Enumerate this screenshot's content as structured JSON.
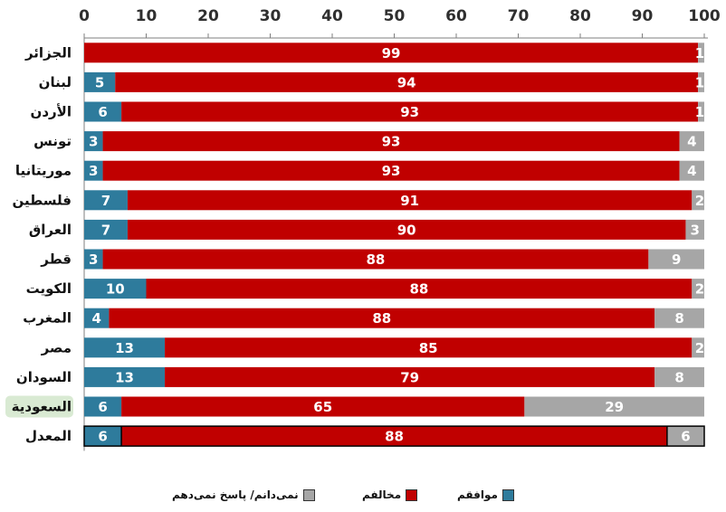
{
  "chart_data": {
    "type": "bar",
    "orientation": "horizontal",
    "stacked": true,
    "categories": [
      "الجزائر",
      "لبنان",
      "الأردن",
      "تونس",
      "موريتانيا",
      "فلسطين",
      "العراق",
      "قطر",
      "الكويت",
      "المغرب",
      "مصر",
      "السودان",
      "السعودية",
      "المعدل"
    ],
    "series": [
      {
        "name": "موافقم",
        "color": "#2e7b9c",
        "values": [
          0,
          5,
          6,
          3,
          3,
          7,
          7,
          3,
          10,
          4,
          13,
          13,
          6,
          6
        ]
      },
      {
        "name": "مخالفم",
        "color": "#c00000",
        "values": [
          99,
          94,
          93,
          93,
          93,
          91,
          90,
          88,
          88,
          88,
          85,
          79,
          65,
          88
        ]
      },
      {
        "name": "نمی‌دانم/ پاسخ نمی‌دهم",
        "color": "#a6a6a6",
        "values": [
          1,
          1,
          1,
          4,
          4,
          2,
          3,
          9,
          2,
          8,
          2,
          8,
          29,
          6
        ]
      }
    ],
    "labels": [
      [
        "",
        "99",
        "1"
      ],
      [
        "5",
        "94",
        "1"
      ],
      [
        "6",
        "93",
        "1"
      ],
      [
        "3",
        "93",
        "4"
      ],
      [
        "3",
        "93",
        "4"
      ],
      [
        "7",
        "91",
        "2"
      ],
      [
        "7",
        "90",
        "3"
      ],
      [
        "3",
        "88",
        "9"
      ],
      [
        "10",
        "88",
        "2"
      ],
      [
        "4",
        "88",
        "8"
      ],
      [
        "13",
        "85",
        "2"
      ],
      [
        "13",
        "79",
        "8"
      ],
      [
        "6",
        "65",
        "29"
      ],
      [
        "6",
        "88",
        "6"
      ]
    ],
    "xticks": [
      "0",
      "10",
      "20",
      "30",
      "40",
      "50",
      "60",
      "70",
      "80",
      "90",
      "100"
    ],
    "xlim": [
      0,
      100
    ],
    "highlight_category": "السعودية",
    "highlight_color": "#d9ead3",
    "outlined_category": "المعدل",
    "legend_position": "bottom",
    "title": "",
    "xlabel": "",
    "ylabel": ""
  },
  "legend": [
    {
      "label": "نمی‌دانم/ پاسخ نمی‌دهم",
      "color": "#a6a6a6"
    },
    {
      "label": "مخالفم",
      "color": "#c00000"
    },
    {
      "label": "موافقم",
      "color": "#2e7b9c"
    }
  ]
}
